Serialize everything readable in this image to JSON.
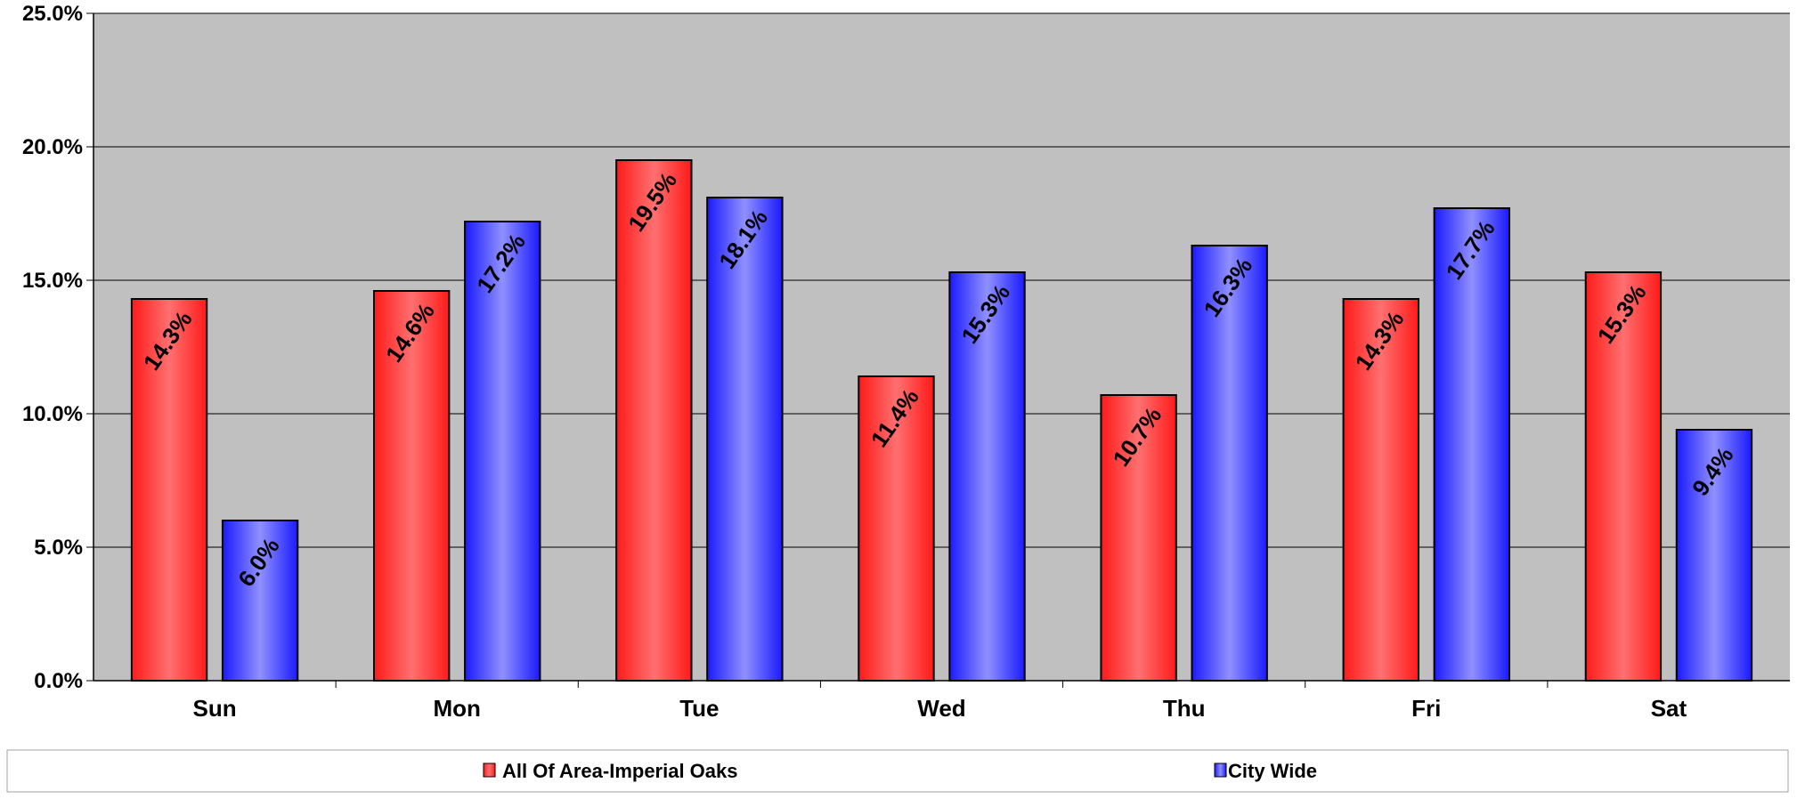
{
  "chart_data": {
    "type": "bar",
    "title": "",
    "xlabel": "",
    "ylabel": "",
    "categories": [
      "Sun",
      "Mon",
      "Tue",
      "Wed",
      "Thu",
      "Fri",
      "Sat"
    ],
    "series": [
      {
        "name": "All Of Area-Imperial Oaks",
        "values": [
          14.3,
          14.6,
          19.5,
          11.4,
          10.7,
          14.3,
          15.3
        ],
        "labels": [
          "14.3%",
          "14.6%",
          "19.5%",
          "11.4%",
          "10.7%",
          "14.3%",
          "15.3%"
        ],
        "color": "#ff2020"
      },
      {
        "name": "City Wide",
        "values": [
          6.0,
          17.2,
          18.1,
          15.3,
          16.3,
          17.7,
          9.4
        ],
        "labels": [
          "6.0%",
          "17.2%",
          "18.1%",
          "15.3%",
          "16.3%",
          "17.7%",
          "9.4%"
        ],
        "color": "#2020ff"
      }
    ],
    "ylim": [
      0,
      25
    ],
    "yticks": [
      0,
      5,
      10,
      15,
      20,
      25
    ],
    "ytick_labels": [
      "0.0%",
      "5.0%",
      "10.0%",
      "15.0%",
      "20.0%",
      "25.0%"
    ],
    "grid": true,
    "plot_background": "#c0c0c0",
    "legend": "bottom"
  }
}
